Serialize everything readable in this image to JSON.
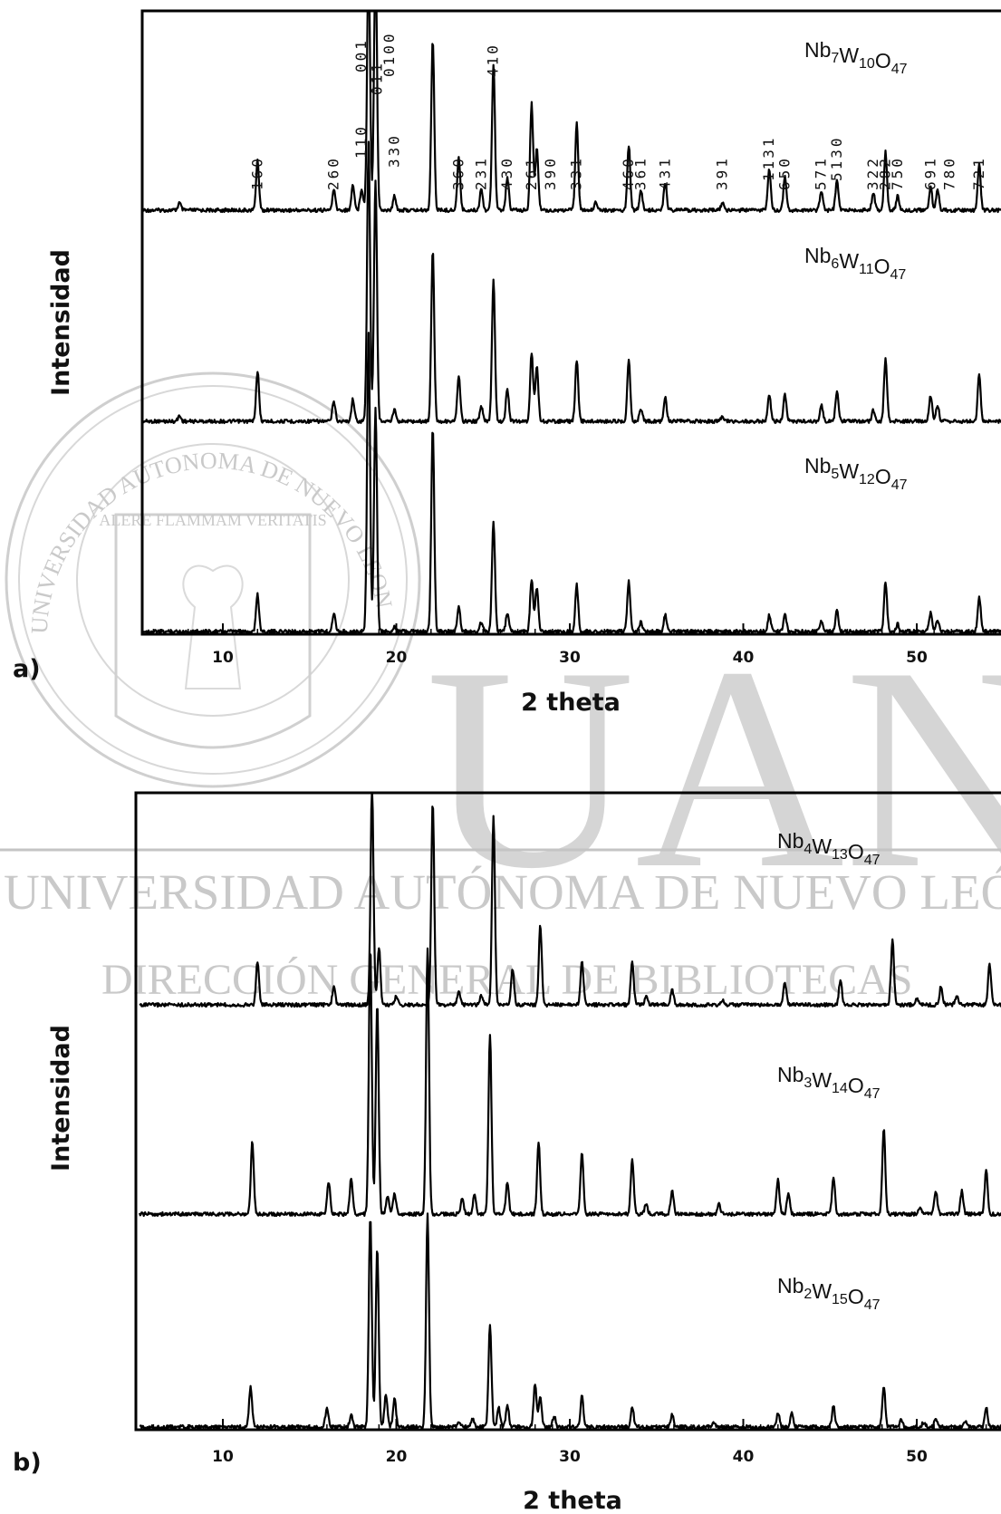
{
  "watermark": {
    "seal_ring_text": "UNIVERSIDAD AUTONOMA DE NUEVO LEON",
    "seal_motto": "ALERE FLAMMAM VERITATIS",
    "big_letters": "UANL",
    "line1": "UNIVERSIDAD AUTÓNOMA DE NUEVO LEÓN",
    "line2": "DIRECCIÓN GENERAL DE BIBLIOTECAS",
    "color": "#c9c9c9"
  },
  "chart_data": [
    {
      "type": "line",
      "panel_label": "a)",
      "xlabel": "2 theta",
      "ylabel": "Intensidad",
      "xlim": [
        5,
        55
      ],
      "xticks": [
        10,
        20,
        30,
        40,
        50
      ],
      "grid": false,
      "series": [
        {
          "name": "Nb7W10O47",
          "label": {
            "main": [
              "Nb",
              "W",
              "O"
            ],
            "sub": [
              "7",
              "10",
              "47"
            ]
          },
          "peaks": [
            [
              7.5,
              0.04
            ],
            [
              12.0,
              0.27
            ],
            [
              16.4,
              0.11
            ],
            [
              17.5,
              0.14
            ],
            [
              18.0,
              0.12
            ],
            [
              18.4,
              1.4
            ],
            [
              18.8,
              1.4
            ],
            [
              19.9,
              0.08
            ],
            [
              22.1,
              0.94
            ],
            [
              23.6,
              0.29
            ],
            [
              24.9,
              0.12
            ],
            [
              25.6,
              0.81
            ],
            [
              26.4,
              0.18
            ],
            [
              27.8,
              0.59
            ],
            [
              28.1,
              0.34
            ],
            [
              30.4,
              0.49
            ],
            [
              31.5,
              0.05
            ],
            [
              33.4,
              0.36
            ],
            [
              34.1,
              0.11
            ],
            [
              35.5,
              0.15
            ],
            [
              38.8,
              0.04
            ],
            [
              41.5,
              0.23
            ],
            [
              42.4,
              0.19
            ],
            [
              44.5,
              0.11
            ],
            [
              45.4,
              0.16
            ],
            [
              47.5,
              0.1
            ],
            [
              48.2,
              0.32
            ],
            [
              48.9,
              0.08
            ],
            [
              50.8,
              0.13
            ],
            [
              51.2,
              0.11
            ],
            [
              53.6,
              0.25
            ]
          ]
        },
        {
          "name": "Nb6W11O47",
          "label": {
            "main": [
              "Nb",
              "W",
              "O"
            ],
            "sub": [
              "6",
              "11",
              "47"
            ]
          },
          "peaks": [
            [
              7.5,
              0.03
            ],
            [
              12.0,
              0.27
            ],
            [
              16.4,
              0.11
            ],
            [
              17.5,
              0.12
            ],
            [
              18.4,
              1.5
            ],
            [
              18.8,
              1.3
            ],
            [
              19.9,
              0.07
            ],
            [
              22.1,
              0.92
            ],
            [
              23.6,
              0.24
            ],
            [
              24.9,
              0.08
            ],
            [
              25.6,
              0.77
            ],
            [
              26.4,
              0.17
            ],
            [
              27.8,
              0.37
            ],
            [
              28.1,
              0.3
            ],
            [
              30.4,
              0.33
            ],
            [
              33.4,
              0.33
            ],
            [
              34.1,
              0.07
            ],
            [
              35.5,
              0.13
            ],
            [
              38.8,
              0.03
            ],
            [
              41.5,
              0.14
            ],
            [
              42.4,
              0.14
            ],
            [
              44.5,
              0.09
            ],
            [
              45.4,
              0.16
            ],
            [
              47.5,
              0.06
            ],
            [
              48.2,
              0.34
            ],
            [
              50.8,
              0.14
            ],
            [
              51.2,
              0.09
            ],
            [
              53.6,
              0.25
            ]
          ]
        },
        {
          "name": "Nb5W12O47",
          "label": {
            "main": [
              "Nb",
              "W",
              "O"
            ],
            "sub": [
              "5",
              "12",
              "47"
            ]
          },
          "peaks": [
            [
              12.0,
              0.2
            ],
            [
              16.4,
              0.1
            ],
            [
              18.4,
              1.6
            ],
            [
              18.8,
              1.2
            ],
            [
              19.9,
              0.03
            ],
            [
              22.1,
              1.1
            ],
            [
              23.6,
              0.13
            ],
            [
              24.9,
              0.05
            ],
            [
              25.6,
              0.6
            ],
            [
              26.4,
              0.1
            ],
            [
              27.8,
              0.28
            ],
            [
              28.1,
              0.24
            ],
            [
              30.4,
              0.25
            ],
            [
              33.4,
              0.27
            ],
            [
              34.1,
              0.05
            ],
            [
              35.5,
              0.09
            ],
            [
              41.5,
              0.09
            ],
            [
              42.4,
              0.1
            ],
            [
              44.5,
              0.06
            ],
            [
              45.4,
              0.11
            ],
            [
              48.2,
              0.27
            ],
            [
              48.9,
              0.04
            ],
            [
              50.8,
              0.1
            ],
            [
              51.2,
              0.06
            ],
            [
              53.6,
              0.19
            ]
          ]
        }
      ],
      "annotations": [
        {
          "text": "160",
          "x": 12.0
        },
        {
          "text": "260",
          "x": 16.4
        },
        {
          "text": "001",
          "x": 18.0
        },
        {
          "text": "110",
          "x": 18.0
        },
        {
          "text": "011",
          "x": 18.9
        },
        {
          "text": "330",
          "x": 19.9
        },
        {
          "text": "0100",
          "x": 19.6
        },
        {
          "text": "360",
          "x": 23.6
        },
        {
          "text": "231",
          "x": 24.9
        },
        {
          "text": "410",
          "x": 25.6
        },
        {
          "text": "430",
          "x": 26.4
        },
        {
          "text": "261",
          "x": 27.8
        },
        {
          "text": "390",
          "x": 28.9
        },
        {
          "text": "331",
          "x": 30.4
        },
        {
          "text": "460",
          "x": 33.4
        },
        {
          "text": "361",
          "x": 34.1
        },
        {
          "text": "431",
          "x": 35.5
        },
        {
          "text": "391",
          "x": 38.8
        },
        {
          "text": "1131",
          "x": 41.5
        },
        {
          "text": "650",
          "x": 42.4
        },
        {
          "text": "571",
          "x": 44.5
        },
        {
          "text": "5130",
          "x": 45.4
        },
        {
          "text": "322",
          "x": 47.5
        },
        {
          "text": "282",
          "x": 48.2
        },
        {
          "text": "750",
          "x": 48.9
        },
        {
          "text": "691",
          "x": 50.8
        },
        {
          "text": "780",
          "x": 51.9
        },
        {
          "text": "721",
          "x": 53.6
        }
      ]
    },
    {
      "type": "line",
      "panel_label": "b)",
      "xlabel": "2 theta",
      "ylabel": "Intensidad",
      "xlim": [
        5,
        55
      ],
      "xticks": [
        10,
        20,
        30,
        40,
        50
      ],
      "grid": false,
      "series": [
        {
          "name": "Nb4W13O47",
          "label": {
            "main": [
              "Nb",
              "W",
              "O"
            ],
            "sub": [
              "4",
              "13",
              "47"
            ]
          },
          "peaks": [
            [
              12.0,
              0.3
            ],
            [
              16.4,
              0.12
            ],
            [
              18.6,
              1.5
            ],
            [
              19.0,
              0.4
            ],
            [
              20.0,
              0.06
            ],
            [
              22.1,
              1.4
            ],
            [
              23.6,
              0.1
            ],
            [
              24.9,
              0.06
            ],
            [
              25.6,
              1.3
            ],
            [
              26.7,
              0.25
            ],
            [
              28.3,
              0.55
            ],
            [
              30.7,
              0.3
            ],
            [
              33.6,
              0.3
            ],
            [
              34.4,
              0.06
            ],
            [
              35.9,
              0.11
            ],
            [
              38.8,
              0.03
            ],
            [
              42.4,
              0.15
            ],
            [
              45.6,
              0.17
            ],
            [
              48.6,
              0.45
            ],
            [
              50.0,
              0.04
            ],
            [
              51.4,
              0.13
            ],
            [
              52.3,
              0.06
            ],
            [
              54.2,
              0.28
            ]
          ]
        },
        {
          "name": "Nb3W14O47",
          "label": {
            "main": [
              "Nb",
              "W",
              "O"
            ],
            "sub": [
              "3",
              "14",
              "47"
            ]
          },
          "peaks": [
            [
              11.7,
              0.38
            ],
            [
              16.1,
              0.17
            ],
            [
              17.4,
              0.19
            ],
            [
              18.5,
              1.4
            ],
            [
              18.9,
              1.1
            ],
            [
              19.5,
              0.09
            ],
            [
              19.9,
              0.11
            ],
            [
              21.8,
              1.4
            ],
            [
              23.8,
              0.08
            ],
            [
              24.5,
              0.1
            ],
            [
              25.4,
              0.95
            ],
            [
              26.4,
              0.17
            ],
            [
              28.2,
              0.38
            ],
            [
              30.7,
              0.33
            ],
            [
              33.6,
              0.29
            ],
            [
              34.4,
              0.05
            ],
            [
              35.9,
              0.12
            ],
            [
              38.6,
              0.05
            ],
            [
              42.0,
              0.18
            ],
            [
              42.6,
              0.11
            ],
            [
              45.2,
              0.2
            ],
            [
              48.1,
              0.45
            ],
            [
              50.2,
              0.04
            ],
            [
              51.1,
              0.12
            ],
            [
              52.6,
              0.12
            ],
            [
              54.0,
              0.23
            ]
          ]
        },
        {
          "name": "Nb2W15O47",
          "label": {
            "main": [
              "Nb",
              "W",
              "O"
            ],
            "sub": [
              "2",
              "15",
              "47"
            ]
          },
          "peaks": [
            [
              11.6,
              0.25
            ],
            [
              16.0,
              0.12
            ],
            [
              17.4,
              0.08
            ],
            [
              18.5,
              1.3
            ],
            [
              18.9,
              1.1
            ],
            [
              19.4,
              0.2
            ],
            [
              19.9,
              0.17
            ],
            [
              21.8,
              1.3
            ],
            [
              23.6,
              0.04
            ],
            [
              24.4,
              0.05
            ],
            [
              25.4,
              0.63
            ],
            [
              25.9,
              0.12
            ],
            [
              26.4,
              0.14
            ],
            [
              28.0,
              0.27
            ],
            [
              28.3,
              0.18
            ],
            [
              29.1,
              0.07
            ],
            [
              30.7,
              0.19
            ],
            [
              33.6,
              0.13
            ],
            [
              35.9,
              0.08
            ],
            [
              38.3,
              0.03
            ],
            [
              42.0,
              0.09
            ],
            [
              42.8,
              0.09
            ],
            [
              45.2,
              0.13
            ],
            [
              48.1,
              0.25
            ],
            [
              49.1,
              0.05
            ],
            [
              50.4,
              0.03
            ],
            [
              51.1,
              0.05
            ],
            [
              52.8,
              0.04
            ],
            [
              54.0,
              0.12
            ]
          ]
        }
      ]
    }
  ]
}
